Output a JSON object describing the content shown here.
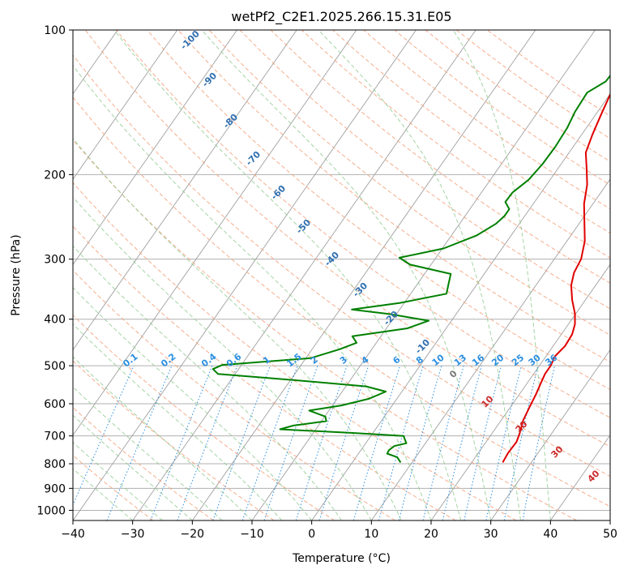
{
  "chart_data": {
    "type": "line",
    "title": "wetPf2_C2E1.2025.266.15.31.E05",
    "xlabel": "Temperature (°C)",
    "ylabel": "Pressure (hPa)",
    "xlim": [
      -40,
      50
    ],
    "ylim": [
      1050,
      100
    ],
    "y_scale": "log",
    "grid": true,
    "x_ticks": [
      -40,
      -30,
      -20,
      -10,
      0,
      10,
      20,
      30,
      40,
      50
    ],
    "y_ticks": [
      100,
      200,
      300,
      400,
      500,
      600,
      700,
      800,
      900,
      1000
    ],
    "series": [
      {
        "name": "",
        "color": "#e00000",
        "points": [
          [
            25.2,
            795
          ],
          [
            25.0,
            760
          ],
          [
            25.1,
            720
          ],
          [
            24.6,
            690
          ],
          [
            23.7,
            650
          ],
          [
            23.2,
            610
          ],
          [
            22.8,
            575
          ],
          [
            22.3,
            545
          ],
          [
            21.9,
            520
          ],
          [
            21.9,
            500
          ],
          [
            21.5,
            478
          ],
          [
            22.0,
            455
          ],
          [
            21.8,
            430
          ],
          [
            21.1,
            410
          ],
          [
            19.9,
            390
          ],
          [
            17.8,
            365
          ],
          [
            15.9,
            340
          ],
          [
            14.9,
            320
          ],
          [
            14.5,
            300
          ],
          [
            13.0,
            275
          ],
          [
            10.6,
            250
          ],
          [
            8.5,
            230
          ],
          [
            6.8,
            210
          ],
          [
            4.9,
            195
          ],
          [
            2.8,
            180
          ],
          [
            1.8,
            165
          ],
          [
            0.9,
            150
          ],
          [
            0.0,
            135
          ],
          [
            -1.0,
            125
          ],
          [
            -1.6,
            115
          ],
          [
            -1.7,
            108
          ],
          [
            -1.2,
            103
          ],
          [
            -0.8,
            100
          ]
        ]
      },
      {
        "name": "",
        "color": "#008000",
        "points": [
          [
            -1.3,
            100
          ],
          [
            -2.1,
            104
          ],
          [
            -2.8,
            110
          ],
          [
            -2.0,
            120
          ],
          [
            -2.2,
            128
          ],
          [
            -4.0,
            135
          ],
          [
            -3.8,
            148
          ],
          [
            -3.2,
            160
          ],
          [
            -3.0,
            175
          ],
          [
            -3.1,
            190
          ],
          [
            -3.6,
            205
          ],
          [
            -4.8,
            218
          ],
          [
            -4.9,
            228
          ],
          [
            -3.4,
            236
          ],
          [
            -3.4,
            244
          ],
          [
            -3.9,
            253
          ],
          [
            -5.8,
            268
          ],
          [
            -9.8,
            285
          ],
          [
            -16.1,
            298
          ],
          [
            -13.5,
            308
          ],
          [
            -5.6,
            322
          ],
          [
            -4.8,
            338
          ],
          [
            -4.0,
            354
          ],
          [
            -10.7,
            370
          ],
          [
            -18.0,
            382
          ],
          [
            -11.3,
            390
          ],
          [
            -3.8,
            403
          ],
          [
            -6.5,
            418
          ],
          [
            -14.8,
            434
          ],
          [
            -13.3,
            448
          ],
          [
            -15.4,
            462
          ],
          [
            -19.2,
            482
          ],
          [
            -33.2,
            498
          ],
          [
            -34.3,
            508
          ],
          [
            -32.9,
            520
          ],
          [
            -20.0,
            535
          ],
          [
            -6.6,
            552
          ],
          [
            -2.7,
            566
          ],
          [
            -4.7,
            586
          ],
          [
            -8.5,
            605
          ],
          [
            -13.3,
            620
          ],
          [
            -9.9,
            638
          ],
          [
            -9.2,
            652
          ],
          [
            -14.2,
            666
          ],
          [
            -16.0,
            678
          ],
          [
            -3.4,
            690
          ],
          [
            5.5,
            700
          ],
          [
            6.0,
            710
          ],
          [
            6.8,
            725
          ],
          [
            5.1,
            735
          ],
          [
            4.7,
            750
          ],
          [
            4.8,
            762
          ],
          [
            6.9,
            775
          ],
          [
            8.1,
            795
          ]
        ]
      }
    ],
    "annotations": {
      "dry_adiabat_labels": [
        "-100",
        "-90",
        "-80",
        "-70",
        "-60",
        "-50",
        "-40",
        "-30",
        "-20",
        "-10",
        "0"
      ],
      "moist_adiabat_labels": [
        "10",
        "20",
        "30",
        "40"
      ],
      "mixing_ratio_labels": [
        "0.1",
        "0.2",
        "0.4",
        "0.6",
        "1",
        "1.5",
        "2",
        "3",
        "4",
        "6",
        "8",
        "10",
        "13",
        "16",
        "20",
        "25",
        "30",
        "36"
      ]
    }
  },
  "colors": {
    "temperature": "#e00000",
    "dewpoint": "#008000",
    "dry_adiabat": "#f4a582",
    "moist_adiabat": "#8fc98f",
    "mixing_ratio": "#2b8fe0",
    "isotherm": "#808080",
    "isobar": "#aaaaaa"
  }
}
